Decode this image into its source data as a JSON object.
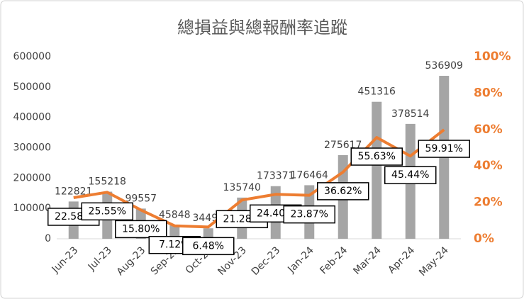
{
  "chart_data": {
    "type": "bar-line",
    "title": "總損益與總報酬率追蹤",
    "categories": [
      "Jun-23",
      "Jul-23",
      "Aug-23",
      "Sep-23",
      "Oct-23",
      "Nov-23",
      "Dec-23",
      "Jan-24",
      "Feb-24",
      "Mar-24",
      "Apr-24",
      "May-24"
    ],
    "series": [
      {
        "type": "bar",
        "color": "#a5a5a5",
        "values": [
          122821,
          155218,
          99557,
          45848,
          34490,
          135740,
          173371,
          176464,
          275617,
          451316,
          378514,
          536909
        ]
      },
      {
        "type": "line",
        "axis": "y2",
        "color": "#ed7d31",
        "values": [
          22.58,
          25.55,
          15.8,
          7.12,
          6.48,
          21.28,
          24.4,
          23.87,
          36.62,
          55.63,
          45.44,
          59.91
        ],
        "value_labels": [
          "22.58%",
          "25.55%",
          "15.80%",
          "7.12%",
          "6.48%",
          "21.28%",
          "24.40%",
          "23.87%",
          "36.62%",
          "55.63%",
          "45.44%",
          "59.91%"
        ]
      }
    ],
    "ylim": [
      0,
      600000
    ],
    "yticks": [
      0,
      100000,
      200000,
      300000,
      400000,
      500000,
      600000
    ],
    "y2lim": [
      0,
      100
    ],
    "y2ticks": [
      {
        "value": 0,
        "label": "0%"
      },
      {
        "value": 20,
        "label": "20%"
      },
      {
        "value": 40,
        "label": "40%"
      },
      {
        "value": 60,
        "label": "60%"
      },
      {
        "value": 80,
        "label": "80%"
      },
      {
        "value": 100,
        "label": "100%"
      }
    ],
    "grid": false
  }
}
